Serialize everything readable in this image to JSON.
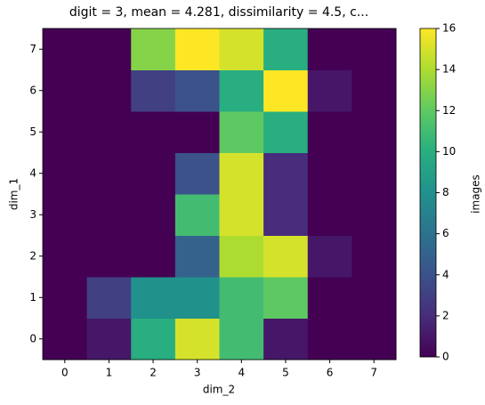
{
  "chart_data": {
    "type": "heatmap",
    "title": "digit = 3, mean = 4.281, dissimilarity = 4.5, c...",
    "xlabel": "dim_2",
    "ylabel": "dim_1",
    "x": [
      0,
      1,
      2,
      3,
      4,
      5,
      6,
      7
    ],
    "y": [
      0,
      1,
      2,
      3,
      4,
      5,
      6,
      7
    ],
    "xlim": [
      -0.5,
      7.5
    ],
    "ylim": [
      -0.5,
      7.5
    ],
    "xticks": [
      0,
      1,
      2,
      3,
      4,
      5,
      6,
      7
    ],
    "yticks": [
      0,
      1,
      2,
      3,
      4,
      5,
      6,
      7
    ],
    "z": [
      [
        0,
        1,
        10,
        15,
        11,
        1,
        0,
        0
      ],
      [
        0,
        3,
        8,
        8,
        11,
        12,
        0,
        0
      ],
      [
        0,
        0,
        0,
        5,
        14,
        15,
        1,
        0
      ],
      [
        0,
        0,
        0,
        11,
        15,
        2,
        0,
        0
      ],
      [
        0,
        0,
        0,
        4,
        15,
        2,
        0,
        0
      ],
      [
        0,
        0,
        0,
        0,
        12,
        10,
        0,
        0
      ],
      [
        0,
        0,
        3,
        4,
        10,
        16,
        1,
        0
      ],
      [
        0,
        0,
        13,
        16,
        15,
        10,
        0,
        0
      ]
    ],
    "colormap": "viridis",
    "clim": [
      0,
      16
    ],
    "cticks": [
      0,
      2,
      4,
      6,
      8,
      10,
      12,
      14,
      16
    ],
    "colorbar_label": "images"
  }
}
